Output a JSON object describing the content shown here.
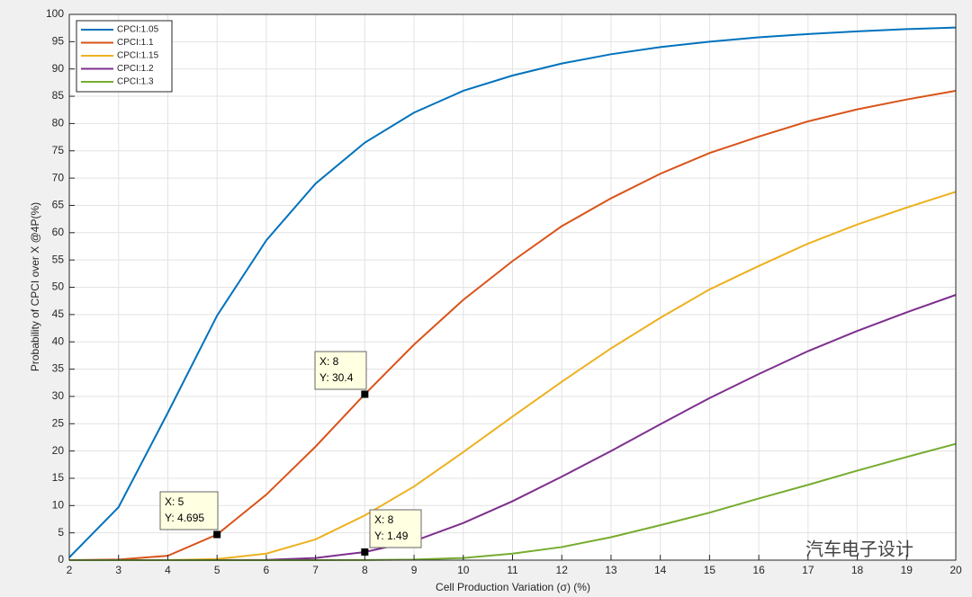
{
  "chart_data": {
    "type": "line",
    "xlabel": "Cell Production Variation (σ) (%)",
    "ylabel": "Probability of CPCI over X @4P(%)",
    "x": [
      2,
      3,
      4,
      5,
      6,
      7,
      8,
      9,
      10,
      11,
      12,
      13,
      14,
      15,
      16,
      17,
      18,
      19,
      20
    ],
    "series": [
      {
        "name": "CPCI:1.05",
        "color": "#0072BD",
        "values": [
          0.5,
          9.7,
          27,
          44.8,
          58.6,
          69,
          76.5,
          82,
          86,
          88.8,
          91,
          92.7,
          94,
          95,
          95.8,
          96.4,
          96.9,
          97.3,
          97.6
        ]
      },
      {
        "name": "CPCI:1.1",
        "color": "#D95319",
        "values": [
          0,
          0.1,
          0.8,
          4.695,
          12,
          20.8,
          30.4,
          39.5,
          47.7,
          54.8,
          61.2,
          66.3,
          70.8,
          74.6,
          77.6,
          80.4,
          82.6,
          84.4,
          86
        ]
      },
      {
        "name": "CPCI:1.15",
        "color": "#EDB120",
        "values": [
          0,
          0,
          0,
          0.2,
          1.2,
          3.8,
          8.2,
          13.5,
          19.8,
          26.3,
          32.7,
          38.8,
          44.4,
          49.6,
          53.9,
          58,
          61.5,
          64.6,
          67.5
        ]
      },
      {
        "name": "CPCI:1.2",
        "color": "#7E2F8E",
        "values": [
          0,
          0,
          0,
          0,
          0.05,
          0.4,
          1.49,
          3.5,
          6.8,
          10.8,
          15.3,
          20,
          24.9,
          29.7,
          34.1,
          38.3,
          42,
          45.4,
          48.6
        ]
      },
      {
        "name": "CPCI:1.3",
        "color": "#77AC30",
        "values": [
          0,
          0,
          0,
          0,
          0,
          0,
          0.02,
          0.1,
          0.4,
          1.2,
          2.4,
          4.2,
          6.4,
          8.7,
          11.3,
          13.8,
          16.4,
          18.9,
          21.3
        ]
      }
    ],
    "xlim": [
      2,
      20
    ],
    "xticks": [
      2,
      3,
      4,
      5,
      6,
      7,
      8,
      9,
      10,
      11,
      12,
      13,
      14,
      15,
      16,
      17,
      18,
      19,
      20
    ],
    "ylim": [
      0,
      100
    ],
    "yticks": [
      0,
      5,
      10,
      15,
      20,
      25,
      30,
      35,
      40,
      45,
      50,
      55,
      60,
      65,
      70,
      75,
      80,
      85,
      90,
      95,
      100
    ],
    "grid": true,
    "legend": "upper-left",
    "annotations": [
      {
        "lines": [
          "X: 8",
          "Y: 30.4"
        ]
      },
      {
        "lines": [
          "X: 5",
          "Y: 4.695"
        ]
      },
      {
        "lines": [
          "X: 8",
          "Y: 1.49"
        ]
      }
    ],
    "watermark": "汽车电子设计"
  }
}
